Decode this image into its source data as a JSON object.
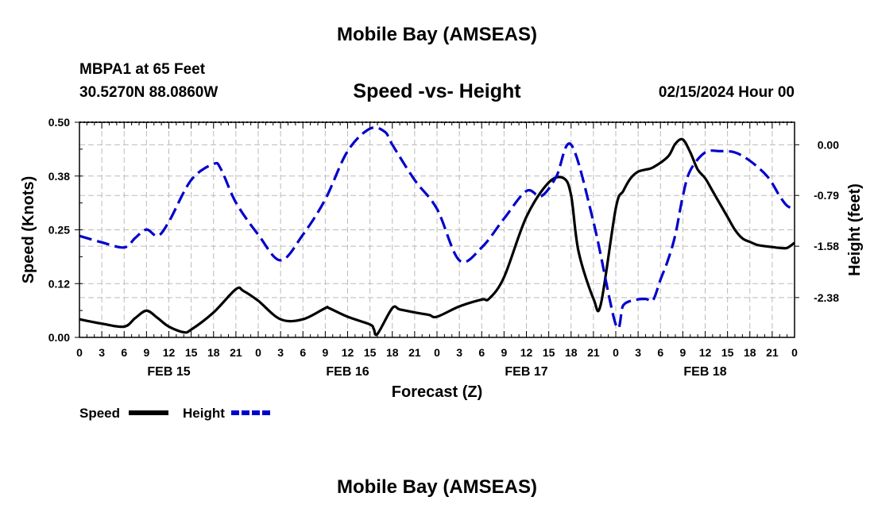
{
  "header": {
    "title": "Mobile Bay (AMSEAS)",
    "station": "MBPA1 at 65 Feet",
    "coords": "30.5270N  88.0860W",
    "datetime": "02/15/2024 Hour 00"
  },
  "footer": {
    "title": "Mobile Bay (AMSEAS)"
  },
  "chart_data": {
    "type": "line",
    "title": "Speed -vs- Height",
    "xlabel": "Forecast (Z)",
    "ylabel": "Speed (Knots)",
    "y2label": "Height (feet)",
    "xlim": [
      0,
      96
    ],
    "ylim": [
      0,
      0.5
    ],
    "y2lim": [
      -3.0,
      0.35
    ],
    "y_ticks": [
      "0.00",
      "0.12",
      "0.25",
      "0.38",
      "0.50"
    ],
    "y_tick_values": [
      0,
      0.125,
      0.25,
      0.375,
      0.5
    ],
    "y2_ticks": [
      "0.00",
      "-0.79",
      "-1.58",
      "-2.38"
    ],
    "y2_tick_values": [
      0,
      -0.79,
      -1.58,
      -2.38
    ],
    "x_tick_labels": [
      "0",
      "3",
      "6",
      "9",
      "12",
      "15",
      "18",
      "21",
      "0",
      "3",
      "6",
      "9",
      "12",
      "15",
      "18",
      "21",
      "0",
      "3",
      "6",
      "9",
      "12",
      "15",
      "18",
      "21",
      "0",
      "3",
      "6",
      "9",
      "12",
      "15",
      "18",
      "21",
      "0"
    ],
    "day_labels": [
      {
        "label": "FEB 15",
        "hour": 12
      },
      {
        "label": "FEB 16",
        "hour": 36
      },
      {
        "label": "FEB 17",
        "hour": 60
      },
      {
        "label": "FEB 18",
        "hour": 84
      }
    ],
    "grid": true,
    "colors": {
      "speed": "#000000",
      "height": "#0000cc",
      "grid": "#bbbbbb"
    },
    "series": [
      {
        "name": "Speed",
        "axis": "left",
        "style": "solid",
        "x": [
          0,
          3,
          6,
          7.5,
          9,
          10.5,
          12,
          14,
          15,
          18,
          21,
          22,
          24,
          27,
          30,
          33,
          33.5,
          36,
          39,
          39.5,
          40,
          42,
          43,
          45,
          46,
          47,
          48,
          51,
          54,
          55,
          57,
          60,
          63,
          65,
          66,
          67,
          69,
          70,
          72,
          73,
          74,
          75,
          76,
          77,
          79,
          80,
          81,
          82,
          83,
          84,
          85,
          86,
          87,
          88,
          89,
          90,
          91,
          92,
          93,
          94,
          95,
          96
        ],
        "y": [
          0.042,
          0.032,
          0.025,
          0.045,
          0.062,
          0.045,
          0.025,
          0.012,
          0.018,
          0.058,
          0.112,
          0.108,
          0.085,
          0.042,
          0.042,
          0.068,
          0.068,
          0.048,
          0.03,
          0.02,
          0.008,
          0.068,
          0.065,
          0.058,
          0.055,
          0.052,
          0.048,
          0.072,
          0.088,
          0.09,
          0.14,
          0.28,
          0.36,
          0.37,
          0.33,
          0.2,
          0.09,
          0.078,
          0.3,
          0.34,
          0.37,
          0.385,
          0.39,
          0.395,
          0.42,
          0.45,
          0.46,
          0.43,
          0.39,
          0.37,
          0.34,
          0.31,
          0.28,
          0.25,
          0.23,
          0.222,
          0.215,
          0.212,
          0.21,
          0.208,
          0.208,
          0.22
        ]
      },
      {
        "name": "Height",
        "axis": "right",
        "style": "dashed",
        "x": [
          0,
          3,
          6,
          7.5,
          9,
          10.5,
          12,
          15,
          18,
          19,
          21,
          24,
          27,
          30,
          33,
          36,
          39,
          41,
          42,
          45,
          48,
          51,
          54,
          57,
          60,
          62,
          64,
          66,
          69,
          72,
          73,
          74.5,
          76,
          77,
          78,
          79,
          80,
          81,
          82,
          84,
          86,
          88,
          90,
          92,
          93,
          94,
          95,
          96
        ],
        "y": [
          -1.42,
          -1.52,
          -1.6,
          -1.45,
          -1.32,
          -1.42,
          -1.2,
          -0.55,
          -0.3,
          -0.38,
          -0.9,
          -1.4,
          -1.8,
          -1.4,
          -0.85,
          -0.1,
          0.25,
          0.2,
          0.0,
          -0.55,
          -1.0,
          -1.8,
          -1.6,
          -1.15,
          -0.72,
          -0.8,
          -0.5,
          0.0,
          -1.2,
          -2.8,
          -2.5,
          -2.42,
          -2.4,
          -2.42,
          -2.1,
          -1.8,
          -1.4,
          -0.8,
          -0.4,
          -0.12,
          -0.1,
          -0.12,
          -0.25,
          -0.45,
          -0.6,
          -0.8,
          -0.95,
          -1.0
        ]
      }
    ],
    "legend": {
      "placement": "bottom-left",
      "entries": [
        "Speed",
        "Height"
      ]
    }
  }
}
